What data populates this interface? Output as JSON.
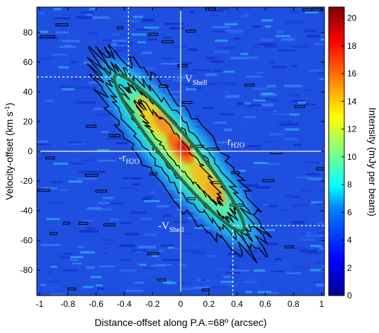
{
  "chart_data": {
    "type": "heatmap",
    "title": "",
    "xlabel": "Distance-offset along P.A.=68º (arcsec)",
    "ylabel_parts": [
      "Velocity-offset (km s",
      "-1",
      ")"
    ],
    "xlim": [
      -1.02,
      1.02
    ],
    "ylim": [
      -97,
      97
    ],
    "x_ticks": [
      -1,
      -0.8,
      -0.6,
      -0.4,
      -0.2,
      0,
      0.2,
      0.4,
      0.6,
      0.8,
      1
    ],
    "x_tick_labels": [
      "-1",
      "-0.8",
      "-0.6",
      "-0.4",
      "-0.2",
      "0",
      "0.2",
      "0.4",
      "0.6",
      "0.8",
      "1"
    ],
    "y_ticks": [
      -80,
      -60,
      -40,
      -20,
      0,
      20,
      40,
      60,
      80
    ],
    "y_tick_labels": [
      "-80",
      "-60",
      "-40",
      "-20",
      "0",
      "20",
      "40",
      "60",
      "80"
    ],
    "colorbar": {
      "label": "Intensity (mJy per beam)",
      "min": 0,
      "max": 20.8,
      "ticks": [
        0,
        2,
        4,
        6,
        8,
        10,
        12,
        14,
        16,
        18,
        20
      ],
      "tick_labels": [
        "0",
        "2",
        "4",
        "6",
        "8",
        "10",
        "12",
        "14",
        "16",
        "18",
        "20"
      ],
      "colormap": "jet"
    },
    "emission_peak": {
      "x": 0.02,
      "y": 2,
      "value": 20
    },
    "ridge": [
      {
        "x": -0.4,
        "y": 45
      },
      {
        "x": -0.2,
        "y": 25
      },
      {
        "x": 0.0,
        "y": 2
      },
      {
        "x": 0.2,
        "y": -22
      },
      {
        "x": 0.38,
        "y": -45
      }
    ],
    "ellipse": {
      "center_x": -0.01,
      "center_y": -1,
      "color": "#2f6b3f",
      "description_points": [
        [
          -0.4,
          48
        ],
        [
          0.38,
          -48
        ]
      ]
    },
    "reference_lines": {
      "v_shell": 50,
      "r_shell_x": 0.37,
      "r_x_line": -0.37
    },
    "annotations": [
      {
        "text": "V",
        "sub": "Shell",
        "x": 0.0,
        "y": 49
      },
      {
        "text": "-V",
        "sub": "Shell",
        "x": -0.19,
        "y": -50
      },
      {
        "text": "r",
        "sub": "H2O",
        "x": 0.3,
        "y": 7
      },
      {
        "text": "-r",
        "sub": "H2O",
        "x": -0.47,
        "y": -4
      }
    ],
    "colors": {
      "background": "#1f4fe0",
      "grid_line": "#ffffff",
      "contour": "#000000"
    }
  }
}
